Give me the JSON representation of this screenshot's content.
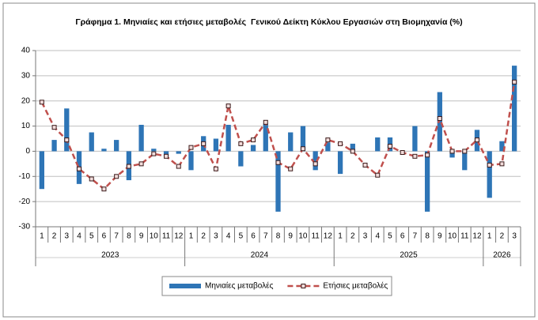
{
  "chart_data": {
    "type": "bar_line",
    "title": "Γράφημα 1. Μηνιαίες και ετήσιες μεταβολές  Γενικού Δείκτη Κύκλου Εργασιών στη Βιομηχανία (%)",
    "groups": [
      {
        "name": "2023",
        "categories": [
          "1",
          "2",
          "3",
          "4",
          "5",
          "6",
          "7",
          "8",
          "9",
          "10",
          "11",
          "12"
        ]
      },
      {
        "name": "2024",
        "categories": [
          "1",
          "2",
          "3",
          "4",
          "5",
          "6",
          "7",
          "8",
          "9",
          "10",
          "11",
          "12"
        ]
      },
      {
        "name": "2025",
        "categories": [
          "1",
          "2",
          "3",
          "4",
          "5",
          "6",
          "7",
          "8",
          "9",
          "10",
          "11",
          "12"
        ]
      },
      {
        "name": "2026",
        "categories": [
          "1",
          "2",
          "3"
        ]
      }
    ],
    "series": [
      {
        "name": "Μηνιαίες μεταβολές",
        "type": "bar",
        "color": "#2e75b6",
        "values": [
          -15,
          4.5,
          17,
          -13,
          7.5,
          1,
          4.5,
          -11.5,
          10.5,
          1,
          -2,
          -1,
          -7.5,
          6,
          5,
          10.5,
          -6,
          2.5,
          11,
          -24,
          7.5,
          10,
          -7.5,
          3.5,
          -9,
          3,
          0,
          5.5,
          5.5,
          0,
          10,
          -24,
          23.5,
          -2.5,
          -7.5,
          8.5,
          -18.5,
          4,
          34
        ]
      },
      {
        "name": "Ετήσιες μεταβολές",
        "type": "line",
        "color": "#c0504d",
        "values": [
          19.5,
          9.5,
          4.5,
          -7,
          -11,
          -15,
          -10,
          -6,
          -5,
          -1,
          -2,
          -6,
          1.5,
          3,
          -7,
          18,
          3,
          4.5,
          11.5,
          -4.5,
          -7,
          1,
          -5,
          4.5,
          3,
          0,
          -5.5,
          -9.5,
          2,
          -0.5,
          -2,
          -1.5,
          13,
          0,
          0,
          4.5,
          -5.5,
          -5,
          27.5
        ]
      }
    ],
    "ylim": [
      -30,
      40
    ],
    "yticks": [
      -30,
      -20,
      -10,
      0,
      10,
      20,
      30,
      40
    ],
    "grid": true
  }
}
